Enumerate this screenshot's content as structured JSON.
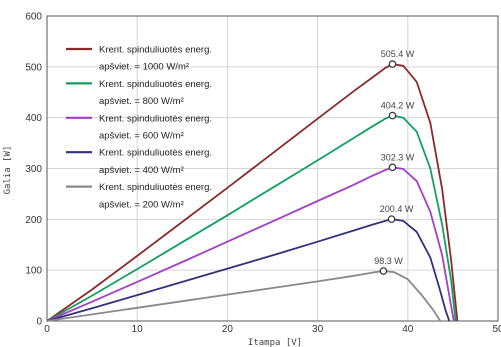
{
  "chart_data": {
    "type": "line",
    "xlabel": "Itampa [V]",
    "ylabel": "Galia [W]",
    "xlim": [
      0,
      50
    ],
    "ylim": [
      0,
      600
    ],
    "x_ticks": [
      "0",
      "10",
      "20",
      "30",
      "40",
      "50"
    ],
    "y_ticks": [
      "0",
      "100",
      "200",
      "300",
      "400",
      "500",
      "600"
    ],
    "grid": true,
    "legend_position": "top-left",
    "legend": [
      "Krent. spinduliuotės energ.",
      "apšviet. = 1000 W/m²",
      "Krent. spinduliuotės energ.",
      "apšviet. = 800 W/m²",
      "Krent. spinduliuotės energ.",
      "apšviet. = 600 W/m²",
      "Krent. spinduliuotės energ.",
      "apšviet. = 400 W/m²",
      "Krent. spinduliuotės energ.",
      "apšviet. = 200 W/m²"
    ],
    "series": [
      {
        "color": "#8b2a2a",
        "peak_label": "505.4 W",
        "peak": [
          38.3,
          505.4
        ],
        "points": [
          [
            0,
            0
          ],
          [
            5,
            62
          ],
          [
            10,
            128
          ],
          [
            15,
            195
          ],
          [
            20,
            262
          ],
          [
            25,
            330
          ],
          [
            30,
            398
          ],
          [
            34,
            452
          ],
          [
            36,
            478
          ],
          [
            37.5,
            498
          ],
          [
            38.3,
            505.4
          ],
          [
            39.5,
            502
          ],
          [
            41,
            470
          ],
          [
            42.5,
            390
          ],
          [
            43.8,
            260
          ],
          [
            44.8,
            120
          ],
          [
            45.5,
            0
          ]
        ]
      },
      {
        "color": "#10a060",
        "peak_label": "404.2 W",
        "peak": [
          38.3,
          404.2
        ],
        "points": [
          [
            0,
            0
          ],
          [
            5,
            50
          ],
          [
            10,
            102
          ],
          [
            15,
            155
          ],
          [
            20,
            208
          ],
          [
            25,
            262
          ],
          [
            30,
            316
          ],
          [
            34,
            360
          ],
          [
            36,
            382
          ],
          [
            37.5,
            398
          ],
          [
            38.3,
            404.2
          ],
          [
            39.5,
            400
          ],
          [
            41,
            372
          ],
          [
            42.5,
            300
          ],
          [
            43.8,
            190
          ],
          [
            44.8,
            80
          ],
          [
            45.3,
            0
          ]
        ]
      },
      {
        "color": "#a23ec8",
        "peak_label": "302.3 W",
        "peak": [
          38.3,
          302.3
        ],
        "points": [
          [
            0,
            0
          ],
          [
            5,
            38
          ],
          [
            10,
            77
          ],
          [
            15,
            116
          ],
          [
            20,
            156
          ],
          [
            25,
            196
          ],
          [
            30,
            236
          ],
          [
            34,
            268
          ],
          [
            36,
            285
          ],
          [
            37.5,
            297
          ],
          [
            38.3,
            302.3
          ],
          [
            39.5,
            299
          ],
          [
            41,
            275
          ],
          [
            42.5,
            215
          ],
          [
            43.8,
            130
          ],
          [
            44.6,
            50
          ],
          [
            45.1,
            0
          ]
        ]
      },
      {
        "color": "#34307a",
        "peak_label": "200.4 W",
        "peak": [
          38.2,
          200.4
        ],
        "points": [
          [
            0,
            0
          ],
          [
            5,
            25
          ],
          [
            10,
            51
          ],
          [
            15,
            77
          ],
          [
            20,
            103
          ],
          [
            25,
            129
          ],
          [
            30,
            156
          ],
          [
            34,
            178
          ],
          [
            36,
            189
          ],
          [
            37.5,
            197
          ],
          [
            38.2,
            200.4
          ],
          [
            39.5,
            197
          ],
          [
            41,
            175
          ],
          [
            42.5,
            125
          ],
          [
            43.5,
            65
          ],
          [
            44.2,
            20
          ],
          [
            44.6,
            0
          ]
        ]
      },
      {
        "color": "#8a8a8a",
        "peak_label": "98.3 W",
        "peak": [
          37.3,
          98.3
        ],
        "points": [
          [
            0,
            0
          ],
          [
            5,
            13
          ],
          [
            10,
            26
          ],
          [
            15,
            39
          ],
          [
            20,
            52
          ],
          [
            25,
            65
          ],
          [
            30,
            78
          ],
          [
            34,
            89
          ],
          [
            36,
            95
          ],
          [
            37.3,
            98.3
          ],
          [
            38.5,
            96
          ],
          [
            40,
            82
          ],
          [
            41.5,
            52
          ],
          [
            42.8,
            22
          ],
          [
            43.6,
            0
          ]
        ]
      }
    ]
  }
}
